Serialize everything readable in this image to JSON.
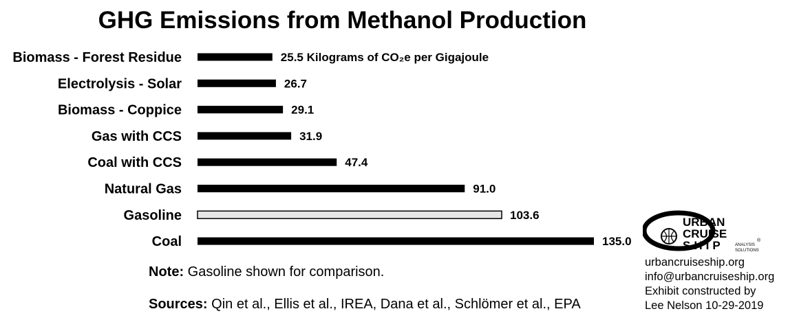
{
  "chart_data": {
    "type": "bar",
    "orientation": "horizontal",
    "title": "GHG Emissions from Methanol Production",
    "unit_label": "Kilograms of CO₂e per Gigajoule",
    "categories": [
      "Biomass - Forest Residue",
      "Electrolysis - Solar",
      "Biomass - Coppice",
      "Gas with CCS",
      "Coal with CCS",
      "Natural Gas",
      "Gasoline",
      "Coal"
    ],
    "values": [
      25.5,
      26.7,
      29.1,
      31.9,
      47.4,
      91.0,
      103.6,
      135.0
    ],
    "value_labels": [
      "25.5",
      "26.7",
      "29.1",
      "31.9",
      "47.4",
      "91.0",
      "103.6",
      "135.0"
    ],
    "highlight": {
      "category": "Gasoline",
      "style": "light fill with outline"
    },
    "colors": {
      "bar": "#000000",
      "highlight_bar": "#e6e6e6"
    },
    "xlim": [
      0,
      135
    ],
    "grid": false,
    "legend": "none"
  },
  "note": {
    "lead": "Note:",
    "text": " Gasoline shown for comparison."
  },
  "sources": {
    "lead": "Sources:",
    "text": " Qin et al., Ellis et al., IREA, Dana et al., Schlömer et al., EPA"
  },
  "logo": {
    "line1": "URBAN",
    "line2": "CRUISE",
    "line3": "SHIP",
    "tagline1": "ANALYSIS",
    "tagline2": "SOLUTIONS",
    "mark": "®"
  },
  "credits": [
    "urbancruiseship.org",
    "info@urbancruiseship.org",
    "Exhibit constructed by",
    "Lee Nelson 10-29-2019"
  ]
}
